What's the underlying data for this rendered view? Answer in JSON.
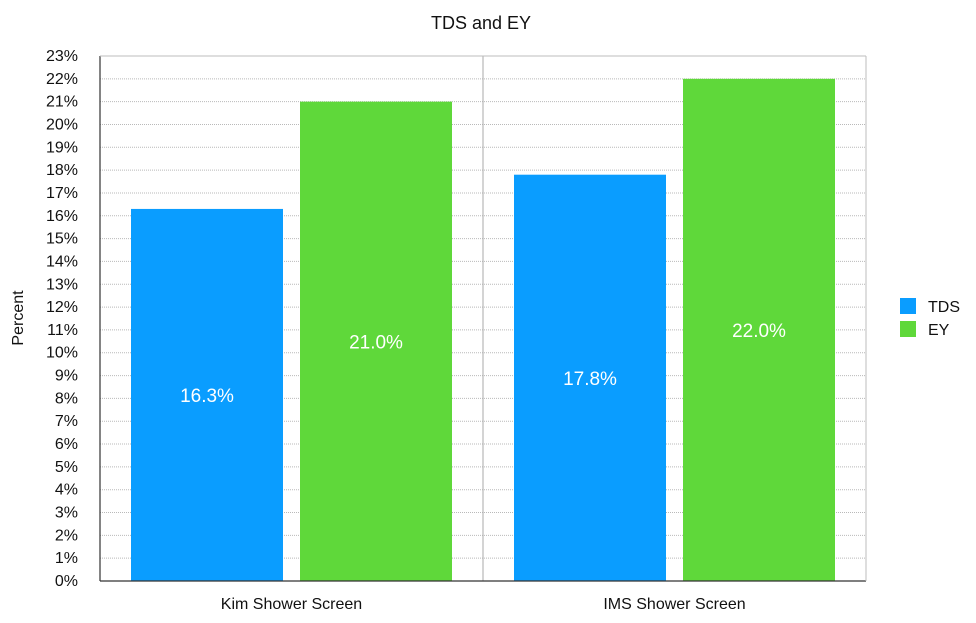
{
  "chart_data": {
    "type": "bar",
    "title": "TDS and EY",
    "xlabel": "",
    "ylabel": "Percent",
    "categories": [
      "Kim Shower Screen",
      "IMS Shower Screen"
    ],
    "series": [
      {
        "name": "TDS",
        "color": "#0a9dff",
        "values": [
          16.3,
          17.8
        ],
        "labels": [
          "16.3%",
          "17.8%"
        ]
      },
      {
        "name": "EY",
        "color": "#5fd83a",
        "values": [
          21.0,
          22.0
        ],
        "labels": [
          "21.0%",
          "22.0%"
        ]
      }
    ],
    "ylim": [
      0,
      23
    ],
    "y_ticks": [
      "0%",
      "1%",
      "2%",
      "3%",
      "4%",
      "5%",
      "6%",
      "7%",
      "8%",
      "9%",
      "10%",
      "11%",
      "12%",
      "13%",
      "14%",
      "15%",
      "16%",
      "17%",
      "18%",
      "19%",
      "20%",
      "21%",
      "22%",
      "23%"
    ],
    "grid": true,
    "legend_position": "right"
  }
}
